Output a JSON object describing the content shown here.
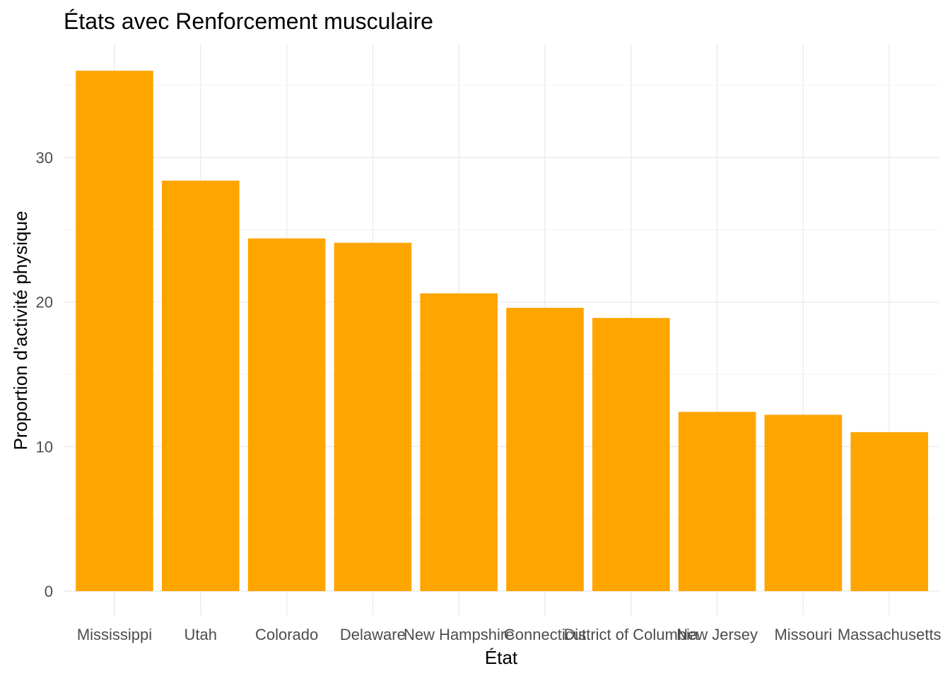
{
  "chart_data": {
    "type": "bar",
    "title": "États avec Renforcement musculaire",
    "xlabel": "État",
    "ylabel": "Proportion d'activité physique",
    "categories": [
      "Mississippi",
      "Utah",
      "Colorado",
      "Delaware",
      "New Hampshire",
      "Connecticut",
      "District of Columbia",
      "New Jersey",
      "Missouri",
      "Massachusetts"
    ],
    "values": [
      36.0,
      28.4,
      24.4,
      24.1,
      20.6,
      19.6,
      18.9,
      12.4,
      12.2,
      11.0
    ],
    "yticks": [
      0,
      10,
      20,
      30
    ],
    "ylim": [
      0,
      37.8
    ],
    "bar_color": "#FFA500",
    "grid": true
  }
}
